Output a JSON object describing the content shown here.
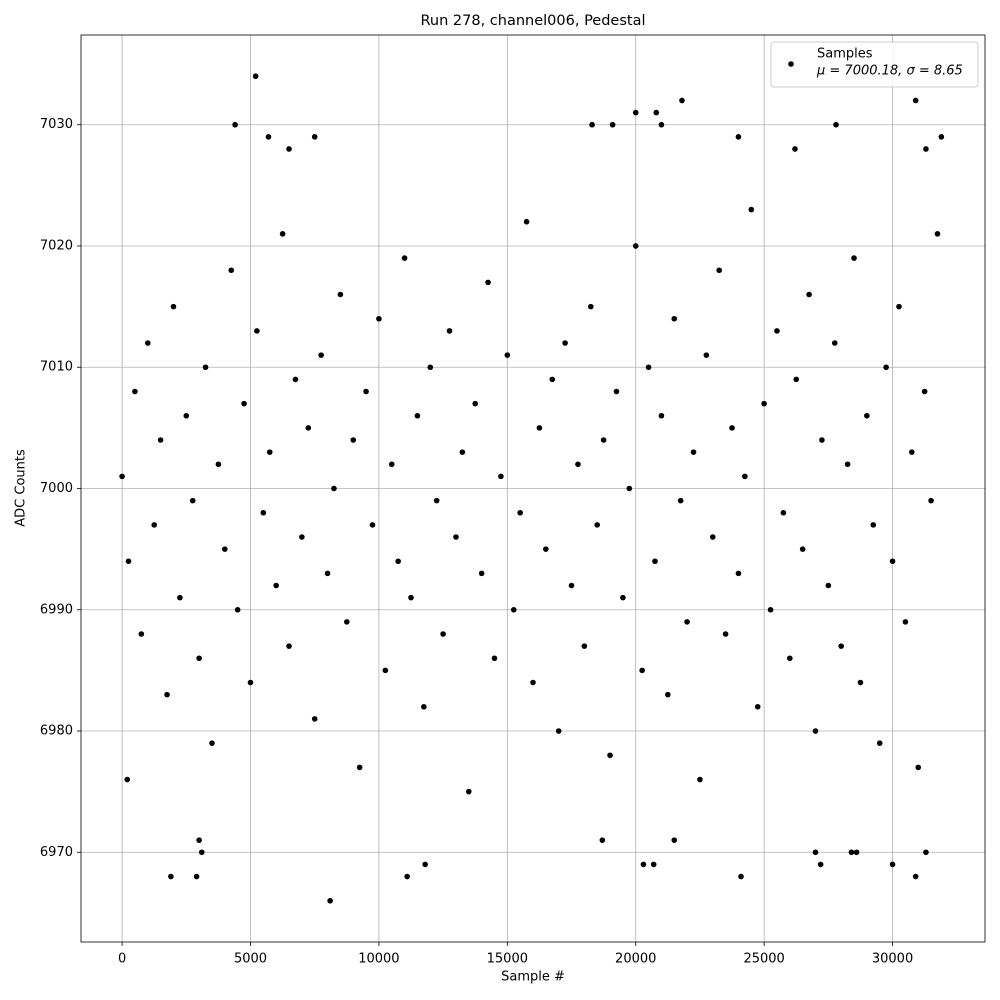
{
  "chart_data": {
    "type": "scatter",
    "title": "Run 278, channel006, Pedestal",
    "x_label": "Sample #",
    "y_label": "ADC Counts",
    "x": [
      0,
      250,
      500,
      750,
      1000,
      1250,
      1500,
      1750,
      2000,
      2250,
      2500,
      2750,
      3000,
      3250,
      3500,
      3750,
      4000,
      4250,
      4500,
      4750,
      5000,
      5250,
      5500,
      5750,
      6000,
      6250,
      6500,
      6750,
      7000,
      7250,
      7500,
      7750,
      8000,
      8250,
      8500,
      8750,
      9000,
      9250,
      9500,
      9750,
      10000,
      10250,
      10500,
      10750,
      11000,
      11250,
      11500,
      11750,
      12000,
      12250,
      12500,
      12750,
      13000,
      13250,
      13500,
      13750,
      14000,
      14250,
      14500,
      14750,
      15000,
      15250,
      15500,
      15750,
      16000,
      16250,
      16500,
      16750,
      17000,
      17250,
      17500,
      17750,
      18000,
      18250,
      18500,
      18750,
      19000,
      19250,
      19500,
      19750,
      20000,
      20250,
      20500,
      20750,
      21000,
      21250,
      21500,
      21750,
      22000,
      22250,
      22500,
      22750,
      23000,
      23250,
      23500,
      23750,
      24000,
      24250,
      24500,
      24750,
      25000,
      25250,
      25500,
      25750,
      26000,
      26250,
      26500,
      26750,
      27000,
      27250,
      27500,
      27750,
      28000,
      28250,
      28500,
      28750,
      29000,
      29250,
      29500,
      29750,
      30000,
      30250,
      30500,
      30750,
      31000,
      31250,
      31500,
      31750,
      5200,
      8100,
      4400,
      21800,
      30900,
      20000,
      20800,
      1900,
      2900,
      11100,
      24100,
      30900,
      3000,
      3100,
      11800,
      20300,
      20700,
      27200,
      27000,
      28400,
      28600,
      31300,
      30000,
      18700,
      21500,
      200,
      7500,
      5700,
      24000,
      31900,
      18300,
      19100,
      21000,
      27800,
      6500,
      26200,
      31300
    ],
    "series": [
      {
        "name": "Samples",
        "color": "#000000",
        "values": [
          7001,
          6994,
          7008,
          6988,
          7012,
          6997,
          7004,
          6983,
          7015,
          6991,
          7006,
          6999,
          6986,
          7010,
          6979,
          7002,
          6995,
          7018,
          6990,
          7007,
          6984,
          7013,
          6998,
          7003,
          6992,
          7021,
          6987,
          7009,
          6996,
          7005,
          6981,
          7011,
          6993,
          7000,
          7016,
          6989,
          7004,
          6977,
          7008,
          6997,
          7014,
          6985,
          7002,
          6994,
          7019,
          6991,
          7006,
          6982,
          7010,
          6999,
          6988,
          7013,
          6996,
          7003,
          6975,
          7007,
          6993,
          7017,
          6986,
          7001,
          7011,
          6990,
          6998,
          7022,
          6984,
          7005,
          6995,
          7009,
          6980,
          7012,
          6992,
          7002,
          6987,
          7015,
          6997,
          7004,
          6978,
          7008,
          6991,
          7000,
          7020,
          6985,
          7010,
          6994,
          7006,
          6983,
          7014,
          6999,
          6989,
          7003,
          6976,
          7011,
          6996,
          7018,
          6988,
          7005,
          6993,
          7001,
          7023,
          6982,
          7007,
          6990,
          7013,
          6998,
          6986,
          7009,
          6995,
          7016,
          6980,
          7004,
          6992,
          7012,
          6987,
          7002,
          7019,
          6984,
          7006,
          6997,
          6979,
          7010,
          6994,
          7015,
          6989,
          7003,
          6977,
          7008,
          6999,
          7021,
          7034,
          6966,
          7030,
          7032,
          7032,
          7031,
          7031,
          6968,
          6968,
          6968,
          6968,
          6968,
          6971,
          6970,
          6969,
          6969,
          6969,
          6969,
          6970,
          6970,
          6970,
          6970,
          6969,
          6971,
          6971,
          6976,
          7029,
          7029,
          7029,
          7029,
          7030,
          7030,
          7030,
          7030,
          7028,
          7028,
          7028
        ]
      }
    ],
    "legend_note": "μ = 7000.18, σ = 8.65",
    "legend_position": "upper right",
    "xlim": [
      -1600,
      33600
    ],
    "ylim": [
      6962.6,
      7037.4
    ],
    "xticks": [
      0,
      5000,
      10000,
      15000,
      20000,
      25000,
      30000
    ],
    "yticks": [
      6970,
      6980,
      6990,
      7000,
      7010,
      7020,
      7030
    ],
    "grid": true
  }
}
